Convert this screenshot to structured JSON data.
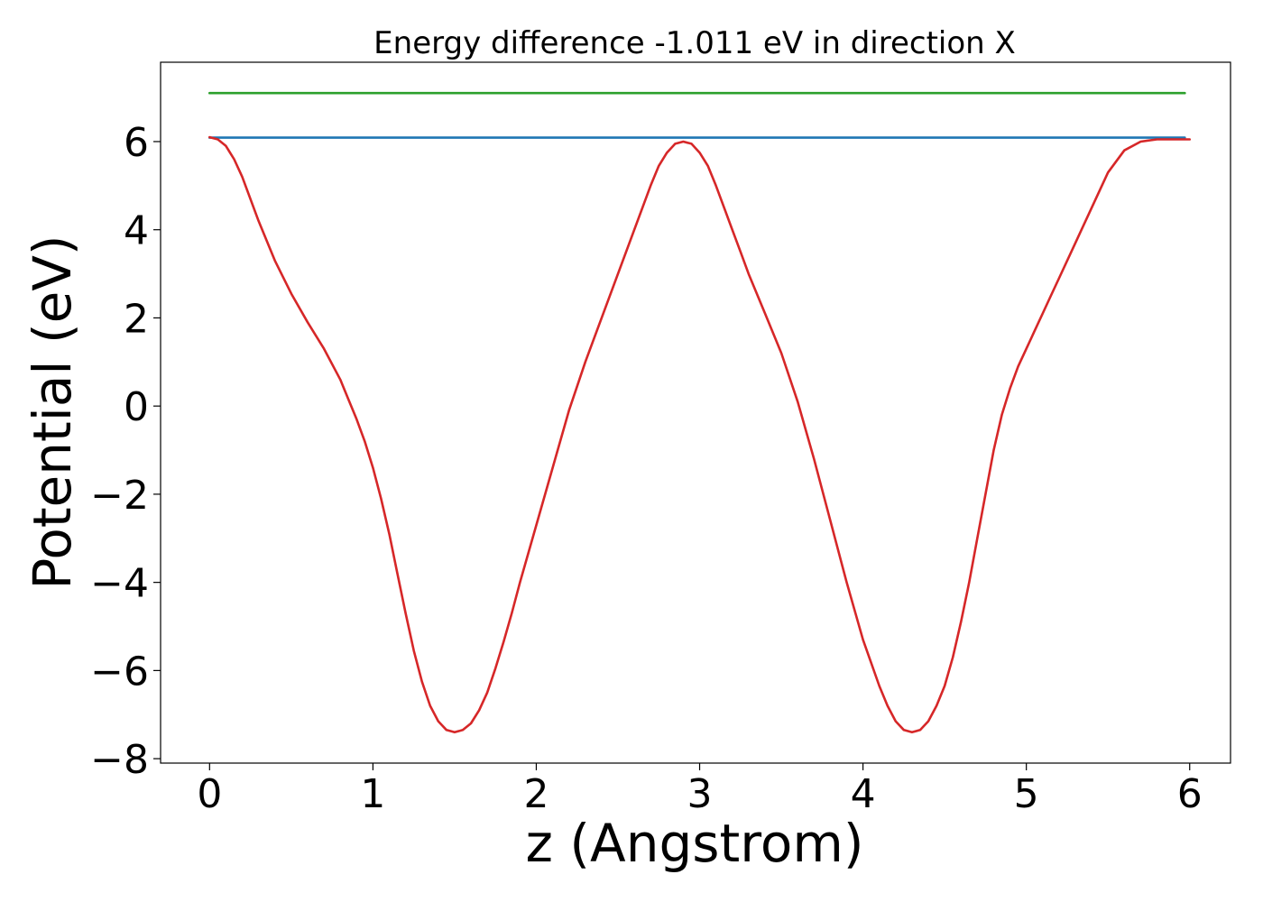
{
  "chart_data": {
    "type": "line",
    "title": "Energy difference -1.011 eV in direction X",
    "xlabel": "z (Angstrom)",
    "ylabel": "Potential (eV)",
    "xlim": [
      -0.3,
      6.25
    ],
    "ylim": [
      -8.1,
      7.8
    ],
    "x_ticks": [
      0,
      1,
      2,
      3,
      4,
      5,
      6
    ],
    "x_tick_labels": [
      "0",
      "1",
      "2",
      "3",
      "4",
      "5",
      "6"
    ],
    "y_ticks": [
      -8,
      -6,
      -4,
      -2,
      0,
      2,
      4,
      6
    ],
    "y_tick_labels": [
      "−8",
      "−6",
      "−4",
      "−2",
      "0",
      "2",
      "4",
      "6"
    ],
    "grid": false,
    "series": [
      {
        "color": "#2ca02c",
        "x": [
          0,
          5.97
        ],
        "y": [
          7.1,
          7.1
        ]
      },
      {
        "color": "#1f77b4",
        "x": [
          0,
          5.97
        ],
        "y": [
          6.09,
          6.09
        ]
      },
      {
        "color": "#d62728",
        "x": [
          0,
          0.05,
          0.1,
          0.15,
          0.2,
          0.3,
          0.4,
          0.5,
          0.6,
          0.7,
          0.8,
          0.85,
          0.9,
          0.95,
          1.0,
          1.05,
          1.1,
          1.15,
          1.2,
          1.25,
          1.3,
          1.35,
          1.4,
          1.45,
          1.5,
          1.55,
          1.6,
          1.65,
          1.7,
          1.75,
          1.8,
          1.85,
          1.9,
          2.0,
          2.1,
          2.2,
          2.3,
          2.4,
          2.5,
          2.6,
          2.7,
          2.75,
          2.8,
          2.85,
          2.9,
          2.95,
          3.0,
          3.05,
          3.1,
          3.15,
          3.2,
          3.25,
          3.3,
          3.4,
          3.5,
          3.6,
          3.7,
          3.8,
          3.9,
          4.0,
          4.1,
          4.15,
          4.2,
          4.25,
          4.3,
          4.35,
          4.4,
          4.45,
          4.5,
          4.55,
          4.6,
          4.65,
          4.7,
          4.75,
          4.8,
          4.85,
          4.9,
          4.95,
          5.0,
          5.05,
          5.1,
          5.15,
          5.2,
          5.3,
          5.4,
          5.5,
          5.6,
          5.7,
          5.8,
          5.85,
          5.9,
          5.95,
          6.0
        ],
        "y": [
          6.1,
          6.05,
          5.9,
          5.6,
          5.2,
          4.2,
          3.3,
          2.55,
          1.9,
          1.3,
          0.6,
          0.15,
          -0.3,
          -0.8,
          -1.4,
          -2.1,
          -2.9,
          -3.8,
          -4.7,
          -5.55,
          -6.25,
          -6.8,
          -7.15,
          -7.35,
          -7.4,
          -7.35,
          -7.2,
          -6.9,
          -6.5,
          -5.95,
          -5.35,
          -4.7,
          -4.0,
          -2.7,
          -1.4,
          -0.1,
          1.0,
          2.0,
          3.0,
          4.0,
          5.0,
          5.45,
          5.75,
          5.95,
          6.0,
          5.95,
          5.75,
          5.45,
          5.0,
          4.5,
          4.0,
          3.5,
          3.0,
          2.1,
          1.2,
          0.1,
          -1.2,
          -2.6,
          -4.0,
          -5.3,
          -6.35,
          -6.8,
          -7.15,
          -7.35,
          -7.4,
          -7.35,
          -7.15,
          -6.8,
          -6.35,
          -5.7,
          -4.9,
          -4.0,
          -3.0,
          -2.0,
          -1.0,
          -0.2,
          0.4,
          0.9,
          1.3,
          1.7,
          2.1,
          2.5,
          2.9,
          3.7,
          4.5,
          5.3,
          5.8,
          6.0,
          6.05,
          6.05,
          6.05,
          6.05,
          6.05
        ]
      }
    ]
  }
}
